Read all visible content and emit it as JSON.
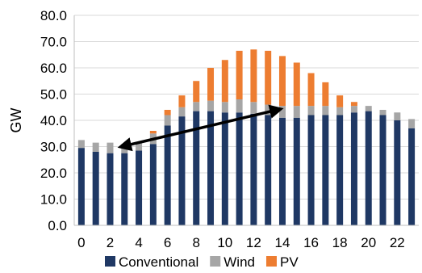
{
  "chart_data": {
    "type": "bar",
    "stacked": true,
    "x": [
      0,
      1,
      2,
      3,
      4,
      5,
      6,
      7,
      8,
      9,
      10,
      11,
      12,
      13,
      14,
      15,
      16,
      17,
      18,
      19,
      20,
      21,
      22,
      23
    ],
    "series": [
      {
        "name": "Conventional",
        "color": "#1f3864",
        "values": [
          29.5,
          28.0,
          27.5,
          27.5,
          28.5,
          31.0,
          38.0,
          41.5,
          43.5,
          43.5,
          43.0,
          43.0,
          42.5,
          42.0,
          41.0,
          41.0,
          42.0,
          42.0,
          42.0,
          43.0,
          43.5,
          42.0,
          40.0,
          37.0
        ]
      },
      {
        "name": "Wind",
        "color": "#a6a6a6",
        "values": [
          3.0,
          3.5,
          4.0,
          3.5,
          3.0,
          4.0,
          4.0,
          3.5,
          3.5,
          4.0,
          4.0,
          5.0,
          4.5,
          4.0,
          4.5,
          4.5,
          3.5,
          3.5,
          3.0,
          2.5,
          2.0,
          2.0,
          3.0,
          3.5
        ]
      },
      {
        "name": "PV",
        "color": "#ed7d31",
        "values": [
          0,
          0,
          0,
          0,
          0,
          1.0,
          2.0,
          4.5,
          8.0,
          12.5,
          16.0,
          18.5,
          20.0,
          20.5,
          19.0,
          16.5,
          12.5,
          9.0,
          4.5,
          1.5,
          0,
          0,
          0,
          0
        ]
      }
    ],
    "ylabel": "GW",
    "xlabel": "",
    "ylim": [
      0,
      80
    ],
    "yticks": [
      "0.0",
      "10.0",
      "20.0",
      "30.0",
      "40.0",
      "50.0",
      "60.0",
      "70.0",
      "80.0"
    ],
    "xticks": [
      "0",
      "2",
      "4",
      "6",
      "8",
      "10",
      "12",
      "14",
      "16",
      "18",
      "20",
      "22"
    ],
    "xtick_values": [
      0,
      2,
      4,
      6,
      8,
      10,
      12,
      14,
      16,
      18,
      20,
      22
    ],
    "grid": true,
    "legend_position": "bottom",
    "annotation": {
      "type": "double-arrow",
      "from": {
        "x": 2.8,
        "y": 30.0
      },
      "to": {
        "x": 13.8,
        "y": 44.2
      },
      "color": "#000000"
    }
  }
}
